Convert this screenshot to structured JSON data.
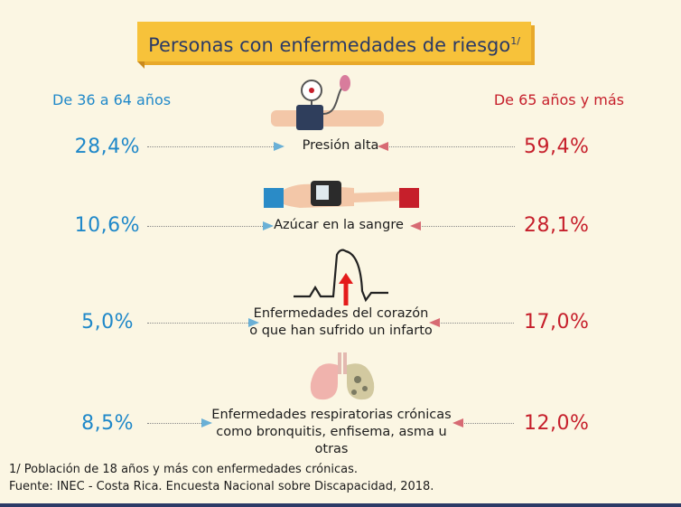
{
  "title": "Personas con enfermedades de riesgo",
  "title_sup": "1/",
  "columns": {
    "left": "De 36 a 64 años",
    "right": "De 65 años y más"
  },
  "rows": [
    {
      "label_line1": "Presión alta",
      "label_line2": "",
      "left": "28,4%",
      "right": "59,4%",
      "icon": "blood-pressure-icon"
    },
    {
      "label_line1": "Azúcar en la sangre",
      "label_line2": "",
      "left": "10,6%",
      "right": "28,1%",
      "icon": "glucometer-icon"
    },
    {
      "label_line1": "Enfermedades del corazón",
      "label_line2": "o que han sufrido un infarto",
      "left": "5,0%",
      "right": "17,0%",
      "icon": "heartbeat-icon"
    },
    {
      "label_line1": "Enfermedades respiratorias crónicas",
      "label_line2": "como bronquitis, enfisema, asma u otras",
      "left": "8,5%",
      "right": "12,0%",
      "icon": "lungs-icon"
    }
  ],
  "footnote": "1/ Población de 18 años y más con enfermedades crónicas.",
  "source": "Fuente: INEC - Costa Rica. Encuesta Nacional sobre Discapacidad, 2018.",
  "colors": {
    "left": "#1f88c9",
    "right": "#c61f2b",
    "banner": "#f7c23a",
    "background": "#fbf6e3"
  }
}
